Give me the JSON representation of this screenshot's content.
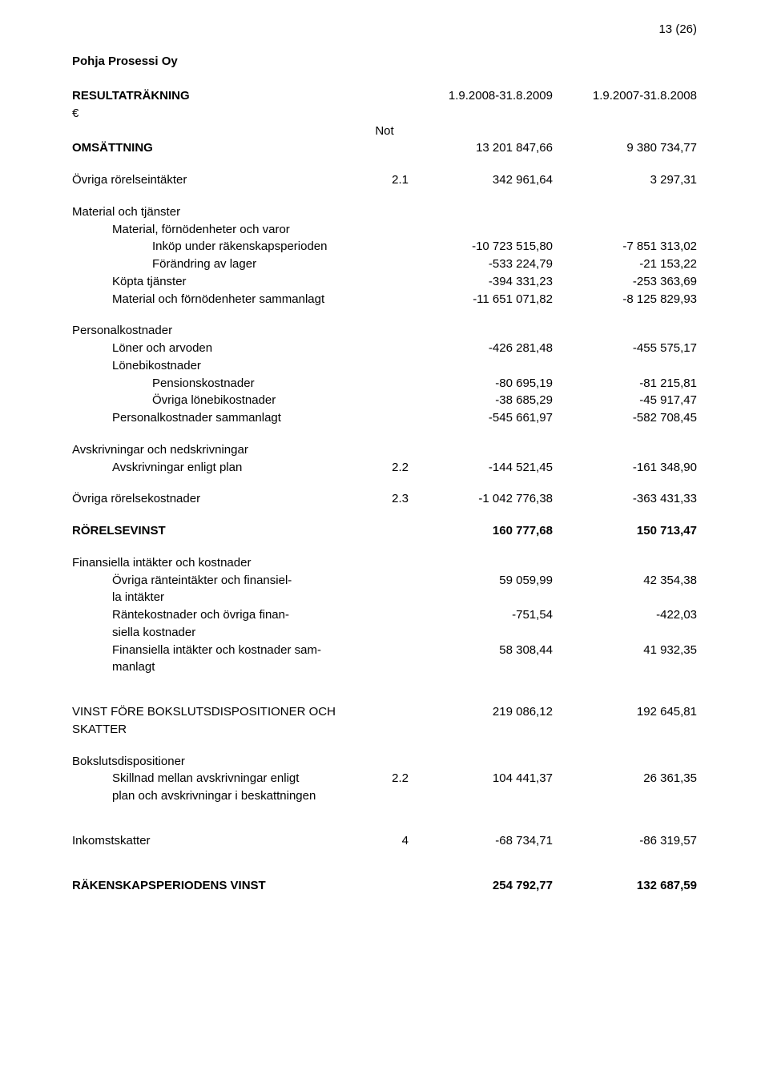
{
  "page_number": "13 (26)",
  "company": "Pohja Prosessi Oy",
  "title_row": {
    "label": "RESULTATRÄKNING",
    "period1": "1.9.2008-31.8.2009",
    "period2": "1.9.2007-31.8.2008"
  },
  "currency": "€",
  "note_header": "Not",
  "rows": {
    "omsattning": {
      "label": "OMSÄTTNING",
      "v1": "13 201 847,66",
      "v2": "9 380 734,77"
    },
    "ovr_intakter": {
      "label": "Övriga rörelseintäkter",
      "note": "2.1",
      "v1": "342 961,64",
      "v2": "3 297,31"
    },
    "mat_hdr": "Material och tjänster",
    "mat_forn": "Material, förnödenheter och varor",
    "inkop": {
      "label": "Inköp under räkenskapsperioden",
      "v1": "-10 723 515,80",
      "v2": "-7 851 313,02"
    },
    "forandr": {
      "label": "Förändring av lager",
      "v1": "-533 224,79",
      "v2": "-21 153,22"
    },
    "kopta": {
      "label": "Köpta tjänster",
      "v1": "-394 331,23",
      "v2": "-253 363,69"
    },
    "mat_sum": {
      "label": "Material och förnödenheter sammanlagt",
      "v1": "-11 651 071,82",
      "v2": "-8 125 829,93"
    },
    "pers_hdr": "Personalkostnader",
    "loner": {
      "label": "Löner och arvoden",
      "v1": "-426 281,48",
      "v2": "-455 575,17"
    },
    "lonebi_hdr": "Lönebikostnader",
    "pension": {
      "label": "Pensionskostnader",
      "v1": "-80 695,19",
      "v2": "-81 215,81"
    },
    "ovr_lonebi": {
      "label": "Övriga lönebikostnader",
      "v1": "-38 685,29",
      "v2": "-45 917,47"
    },
    "pers_sum": {
      "label": "Personalkostnader sammanlagt",
      "v1": "-545 661,97",
      "v2": "-582 708,45"
    },
    "avskr_hdr": "Avskrivningar och nedskrivningar",
    "avskr_plan": {
      "label": "Avskrivningar enligt plan",
      "note": "2.2",
      "v1": "-144 521,45",
      "v2": "-161 348,90"
    },
    "ovr_kostn": {
      "label": "Övriga rörelsekostnader",
      "note": "2.3",
      "v1": "-1 042 776,38",
      "v2": "-363 431,33"
    },
    "rorelsevinst": {
      "label": "RÖRELSEVINST",
      "v1": "160 777,68",
      "v2": "150 713,47"
    },
    "fin_hdr": "Finansiella intäkter och kostnader",
    "ranteint": {
      "label1": "Övriga ränteintäkter och finansiel-",
      "label2": "la intäkter",
      "v1": "59 059,99",
      "v2": "42 354,38"
    },
    "rantekost": {
      "label1": "Räntekostnader och övriga finan-",
      "label2": "siella kostnader",
      "v1": "-751,54",
      "v2": "-422,03"
    },
    "fin_sum": {
      "label1": "Finansiella intäkter och kostnader sam-",
      "label2": "manlagt",
      "v1": "58 308,44",
      "v2": "41 932,35"
    },
    "vinst_fore": {
      "label1": "VINST FÖRE BOKSLUTSDISPOSITIONER OCH",
      "label2": "SKATTER",
      "v1": "219 086,12",
      "v2": "192 645,81"
    },
    "boksl_hdr": "Bokslutsdispositioner",
    "skillnad": {
      "label1": "Skillnad mellan avskrivningar enligt",
      "label2": "plan och avskrivningar i beskattningen",
      "note": "2.2",
      "v1": "104 441,37",
      "v2": "26 361,35"
    },
    "inkomst": {
      "label": "Inkomstskatter",
      "note": "4",
      "v1": "-68 734,71",
      "v2": "-86 319,57"
    },
    "rak_vinst": {
      "label": "RÄKENSKAPSPERIODENS VINST",
      "v1": "254 792,77",
      "v2": "132 687,59"
    }
  }
}
